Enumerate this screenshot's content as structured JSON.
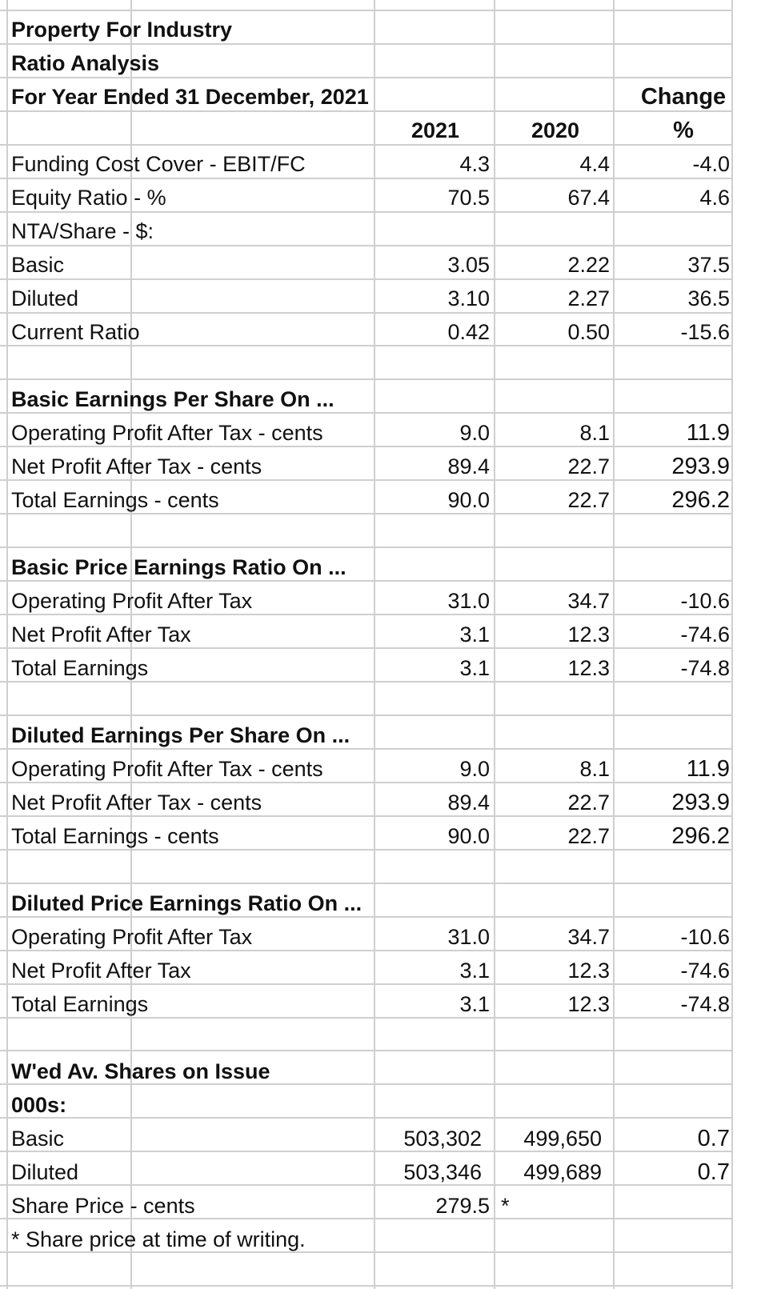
{
  "title": {
    "line1": "Property For Industry",
    "line2": "Ratio Analysis",
    "line3": "For Year Ended 31 December, 2021"
  },
  "columns": {
    "year1": "2021",
    "year2": "2020",
    "change_top": "Change",
    "change_unit": "%"
  },
  "rows": {
    "funding": {
      "label": "Funding Cost Cover - EBIT/FC",
      "y2021": "4.3",
      "y2020": "4.4",
      "chg": "-4.0"
    },
    "equity": {
      "label": "Equity Ratio - %",
      "y2021": "70.5",
      "y2020": "67.4",
      "chg": "4.6"
    },
    "nta": {
      "label": "NTA/Share - $:"
    },
    "nta_basic": {
      "label": "Basic",
      "y2021": "3.05",
      "y2020": "2.22",
      "chg": "37.5"
    },
    "nta_diluted": {
      "label": "Diluted",
      "y2021": "3.10",
      "y2020": "2.27",
      "chg": "36.5"
    },
    "current": {
      "label": "Current Ratio",
      "y2021": "0.42",
      "y2020": "0.50",
      "chg": "-15.6"
    },
    "beps_h": {
      "label": "Basic Earnings Per Share On ..."
    },
    "beps_op": {
      "label": "Operating Profit After Tax - cents",
      "y2021": "9.0",
      "y2020": "8.1",
      "chg": "11.9"
    },
    "beps_np": {
      "label": "Net Profit After Tax - cents",
      "y2021": "89.4",
      "y2020": "22.7",
      "chg": "293.9"
    },
    "beps_te": {
      "label": "Total Earnings - cents",
      "y2021": "90.0",
      "y2020": "22.7",
      "chg": "296.2"
    },
    "bpe_h": {
      "label": "Basic Price Earnings Ratio On ..."
    },
    "bpe_op": {
      "label": "Operating Profit After Tax",
      "y2021": "31.0",
      "y2020": "34.7",
      "chg": "-10.6"
    },
    "bpe_np": {
      "label": "Net Profit After Tax",
      "y2021": "3.1",
      "y2020": "12.3",
      "chg": "-74.6"
    },
    "bpe_te": {
      "label": "Total Earnings",
      "y2021": "3.1",
      "y2020": "12.3",
      "chg": "-74.8"
    },
    "deps_h": {
      "label": "Diluted Earnings Per Share On ..."
    },
    "deps_op": {
      "label": "Operating Profit After Tax - cents",
      "y2021": "9.0",
      "y2020": "8.1",
      "chg": "11.9"
    },
    "deps_np": {
      "label": "Net Profit After Tax - cents",
      "y2021": "89.4",
      "y2020": "22.7",
      "chg": "293.9"
    },
    "deps_te": {
      "label": "Total Earnings - cents",
      "y2021": "90.0",
      "y2020": "22.7",
      "chg": "296.2"
    },
    "dpe_h": {
      "label": "Diluted Price Earnings Ratio On ..."
    },
    "dpe_op": {
      "label": "Operating Profit After Tax",
      "y2021": "31.0",
      "y2020": "34.7",
      "chg": "-10.6"
    },
    "dpe_np": {
      "label": "Net Profit After Tax",
      "y2021": "3.1",
      "y2020": "12.3",
      "chg": "-74.6"
    },
    "dpe_te": {
      "label": "Total Earnings",
      "y2021": "3.1",
      "y2020": "12.3",
      "chg": "-74.8"
    },
    "wav_h": {
      "label": "W'ed Av. Shares on Issue"
    },
    "wav_unit": {
      "label": "000s:"
    },
    "wav_basic": {
      "label": "Basic",
      "y2021": "503,302",
      "y2020": "499,650",
      "chg": "0.7"
    },
    "wav_diluted": {
      "label": "Diluted",
      "y2021": "503,346",
      "y2020": "499,689",
      "chg": "0.7"
    },
    "price": {
      "label": "Share Price - cents",
      "y2021": "279.5",
      "marker": "*"
    },
    "footnote": {
      "label": "* Share price at time of writing."
    }
  }
}
